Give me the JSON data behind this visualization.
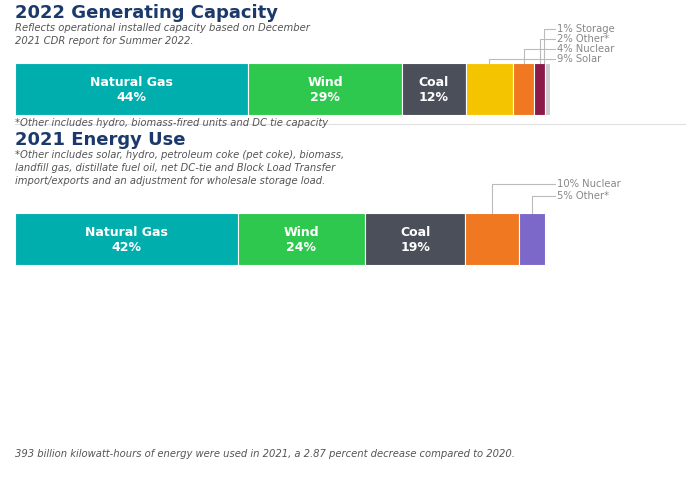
{
  "title1": "2022 Generating Capacity",
  "subtitle1": "Reflects operational installed capacity based on December\n2021 CDR report for Summer 2022.",
  "footnote1": "*Other includes hydro, biomass-fired units and DC tie capacity",
  "title2": "2021 Energy Use",
  "subtitle2": "*Other includes solar, hydro, petroleum coke (pet coke), biomass,\nlandfill gas, distillate fuel oil, net DC-tie and Block Load Transfer\nimport/exports and an adjustment for wholesale storage load.",
  "footnote2": "393 billion kilowatt-hours of energy were used in 2021, a 2.87 percent decrease compared to 2020.",
  "bar1": [
    {
      "label": "Natural Gas\n44%",
      "value": 44,
      "color": "#00AEAE"
    },
    {
      "label": "Wind\n29%",
      "value": 29,
      "color": "#2DC84D"
    },
    {
      "label": "Coal\n12%",
      "value": 12,
      "color": "#4A4F5A"
    },
    {
      "label": "",
      "value": 9,
      "color": "#F5C400"
    },
    {
      "label": "",
      "value": 4,
      "color": "#F07820"
    },
    {
      "label": "",
      "value": 2,
      "color": "#8B1A4A"
    },
    {
      "label": "",
      "value": 1,
      "color": "#CCCCCC"
    }
  ],
  "bar2": [
    {
      "label": "Natural Gas\n42%",
      "value": 42,
      "color": "#00AEAE"
    },
    {
      "label": "Wind\n24%",
      "value": 24,
      "color": "#2DC84D"
    },
    {
      "label": "Coal\n19%",
      "value": 19,
      "color": "#4A4F5A"
    },
    {
      "label": "",
      "value": 10,
      "color": "#F07820"
    },
    {
      "label": "",
      "value": 5,
      "color": "#7B68C8"
    }
  ],
  "bg_color": "#FFFFFF",
  "title_color": "#1B3A6B",
  "text_color": "#555555",
  "ann_color": "#888888",
  "bar_text_color": "#FFFFFF",
  "figsize": [
    7.0,
    4.79
  ],
  "dpi": 100
}
